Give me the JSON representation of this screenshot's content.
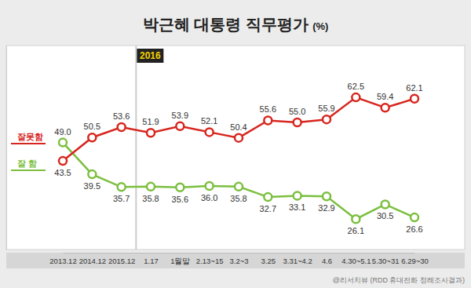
{
  "chart_data": {
    "type": "line",
    "title": "박근혜 대통령 직무평가 (%)",
    "annotations": [
      "2016",
      "@리서치뷰 (RDD 휴대전화 정례조사결과)"
    ],
    "categories": [
      "2013.12",
      "2014.12",
      "2015.12",
      "1.17",
      "1월말",
      "2.13~15",
      "3.2~3",
      "3.25",
      "3.31~4.2",
      "4.6",
      "4.30~5.1",
      "5.30~31",
      "6.29~30"
    ],
    "series": [
      {
        "name": "잘 함",
        "color": "#7cbf3f",
        "values": [
          49.0,
          39.5,
          35.7,
          35.8,
          35.6,
          36.0,
          35.8,
          32.7,
          33.1,
          32.9,
          26.1,
          30.5,
          26.6
        ],
        "value_labels": [
          "49.0",
          "39.5",
          "35.7",
          "35.8",
          "35.6",
          "36.0",
          "35.8",
          "32.7",
          "33.1",
          "32.9",
          "26.1",
          "30.5",
          "26.6"
        ]
      },
      {
        "name": "잘못함",
        "color": "#d7261e",
        "values": [
          43.5,
          50.5,
          53.6,
          51.9,
          53.9,
          52.1,
          50.4,
          55.6,
          55.0,
          55.9,
          62.5,
          59.4,
          62.1
        ],
        "value_labels": [
          "43.5",
          "50.5",
          "53.6",
          "51.9",
          "53.9",
          "52.1",
          "50.4",
          "55.6",
          "55.0",
          "55.9",
          "62.5",
          "59.4",
          "62.1"
        ]
      }
    ],
    "ylim": [
      17,
      78
    ],
    "yticks": [],
    "grid": false,
    "tick_labels": "x",
    "data_labels": true,
    "marker": "circle",
    "legend": "left"
  }
}
